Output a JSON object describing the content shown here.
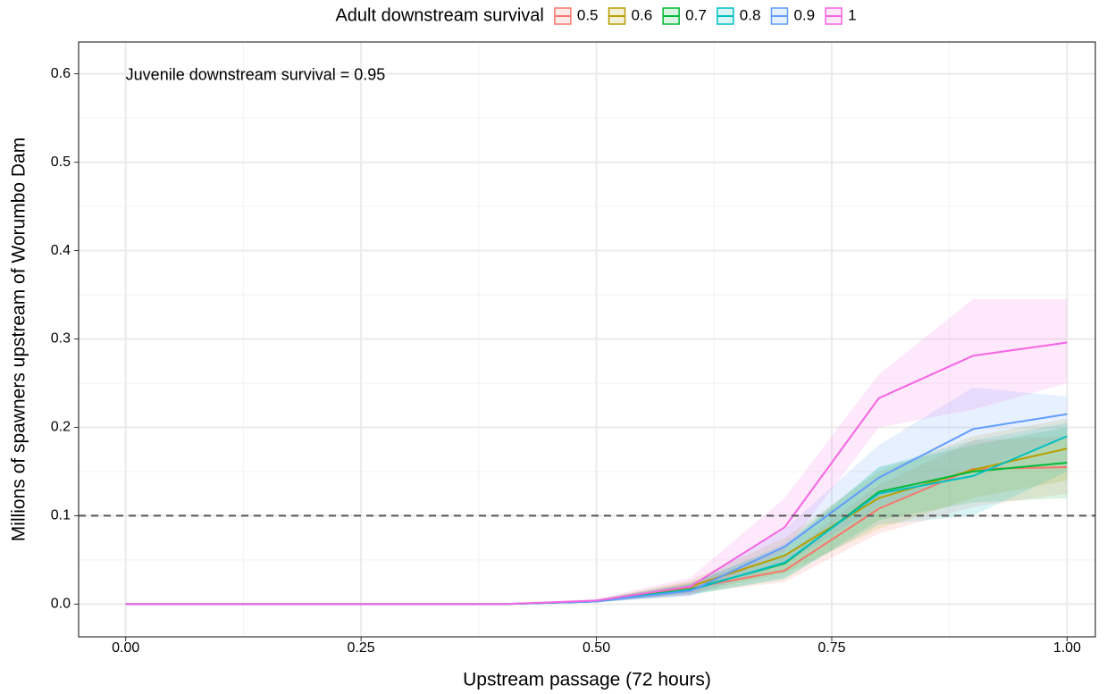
{
  "chart_data": {
    "type": "line",
    "xlabel": "Upstream passage (72 hours)",
    "ylabel": "Millions of spawners upstream of Worumbo Dam",
    "annotation": "Juvenile downstream survival = 0.95",
    "legend_title": "Adult downstream survival",
    "legend_position": "top",
    "grid": true,
    "reference_line": 0.1,
    "x": [
      0,
      0.1,
      0.2,
      0.3,
      0.4,
      0.5,
      0.6,
      0.7,
      0.8,
      0.9,
      1.0
    ],
    "xlim": [
      -0.05,
      1.03
    ],
    "ylim": [
      -0.037,
      0.636
    ],
    "xticks": [
      {
        "value": 0,
        "label": "0.00"
      },
      {
        "value": 0.25,
        "label": "0.25"
      },
      {
        "value": 0.5,
        "label": "0.50"
      },
      {
        "value": 0.75,
        "label": "0.75"
      },
      {
        "value": 1,
        "label": "1.00"
      }
    ],
    "yticks": [
      {
        "value": 0,
        "label": "0.0"
      },
      {
        "value": 0.1,
        "label": "0.1"
      },
      {
        "value": 0.2,
        "label": "0.2"
      },
      {
        "value": 0.3,
        "label": "0.3"
      },
      {
        "value": 0.4,
        "label": "0.4"
      },
      {
        "value": 0.5,
        "label": "0.5"
      },
      {
        "value": 0.6,
        "label": "0.6"
      }
    ],
    "xminor": [
      0.125,
      0.375,
      0.625,
      0.875
    ],
    "yminor": [
      0.05,
      0.15,
      0.25,
      0.35,
      0.45,
      0.55
    ],
    "series": [
      {
        "name": "0.5",
        "color": "#F8766D",
        "values": [
          0,
          0,
          0,
          0,
          0,
          0.003,
          0.018,
          0.038,
          0.108,
          0.153,
          0.155
        ],
        "lower": [
          0,
          0,
          0,
          0,
          0,
          0.002,
          0.012,
          0.025,
          0.08,
          0.11,
          0.125
        ],
        "upper": [
          0,
          0,
          0,
          0,
          0,
          0.005,
          0.025,
          0.055,
          0.135,
          0.185,
          0.19
        ]
      },
      {
        "name": "0.6",
        "color": "#B79F00",
        "values": [
          0,
          0,
          0,
          0,
          0,
          0.003,
          0.02,
          0.055,
          0.12,
          0.152,
          0.176
        ],
        "lower": [
          0,
          0,
          0,
          0,
          0,
          0.002,
          0.013,
          0.035,
          0.085,
          0.12,
          0.14
        ],
        "upper": [
          0,
          0,
          0,
          0,
          0,
          0.005,
          0.027,
          0.075,
          0.15,
          0.19,
          0.21
        ]
      },
      {
        "name": "0.7",
        "color": "#00BA38",
        "values": [
          0,
          0,
          0,
          0,
          0,
          0.003,
          0.017,
          0.046,
          0.127,
          0.15,
          0.16
        ],
        "lower": [
          0,
          0,
          0,
          0,
          0,
          0.002,
          0.011,
          0.028,
          0.095,
          0.115,
          0.12
        ],
        "upper": [
          0,
          0,
          0,
          0,
          0,
          0.005,
          0.024,
          0.065,
          0.155,
          0.18,
          0.2
        ]
      },
      {
        "name": "0.8",
        "color": "#00BFC4",
        "values": [
          0,
          0,
          0,
          0,
          0,
          0.003,
          0.016,
          0.047,
          0.125,
          0.145,
          0.19
        ],
        "lower": [
          0,
          0,
          0,
          0,
          0,
          0.002,
          0.01,
          0.03,
          0.09,
          0.1,
          0.15
        ],
        "upper": [
          0,
          0,
          0,
          0,
          0,
          0.005,
          0.023,
          0.068,
          0.155,
          0.185,
          0.205
        ]
      },
      {
        "name": "0.9",
        "color": "#619CFF",
        "values": [
          0,
          0,
          0,
          0,
          0,
          0.003,
          0.015,
          0.065,
          0.143,
          0.198,
          0.215
        ],
        "lower": [
          0,
          0,
          0,
          0,
          0,
          0.002,
          0.009,
          0.045,
          0.11,
          0.15,
          0.19
        ],
        "upper": [
          0,
          0,
          0,
          0,
          0,
          0.005,
          0.022,
          0.085,
          0.18,
          0.245,
          0.235
        ]
      },
      {
        "name": "1",
        "color": "#F564E3",
        "values": [
          0,
          0,
          0,
          0,
          0,
          0.004,
          0.02,
          0.087,
          0.233,
          0.281,
          0.296
        ],
        "lower": [
          0,
          0,
          0,
          0,
          0,
          0.003,
          0.01,
          0.06,
          0.2,
          0.22,
          0.25
        ],
        "upper": [
          0,
          0,
          0,
          0,
          0,
          0.006,
          0.03,
          0.12,
          0.26,
          0.345,
          0.345
        ]
      }
    ]
  }
}
